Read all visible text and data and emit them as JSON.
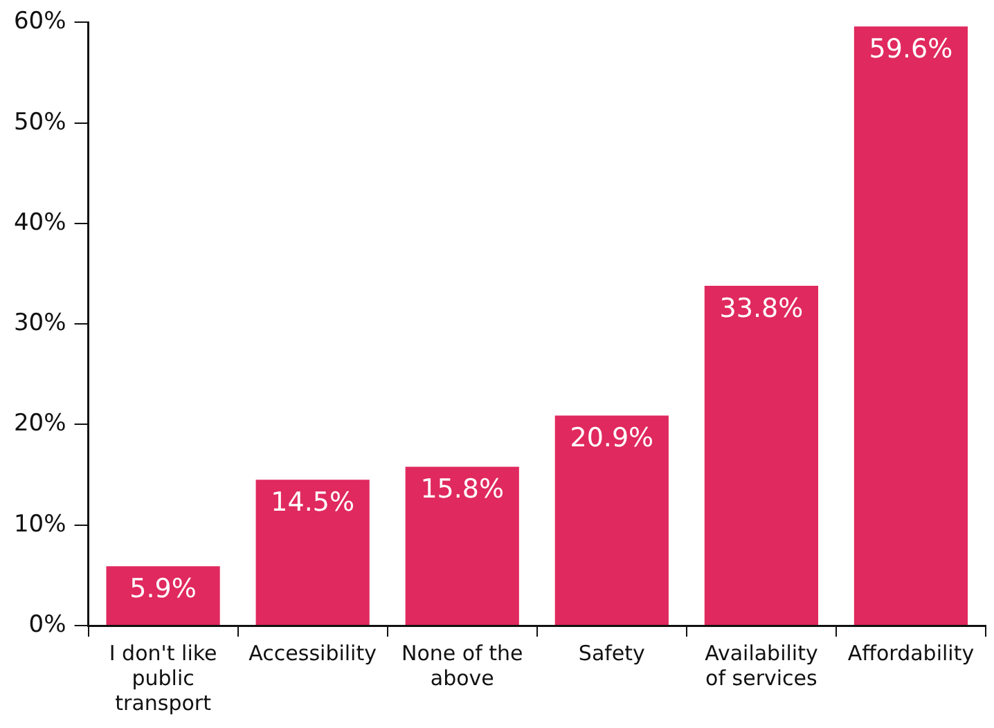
{
  "chart_data": {
    "type": "bar",
    "categories": [
      "I don't like public transport",
      "Accessibility",
      "None of the above",
      "Safety",
      "Availability of services",
      "Affordability"
    ],
    "values": [
      5.9,
      14.5,
      15.8,
      20.9,
      33.8,
      59.6
    ],
    "value_labels": [
      "5.9%",
      "14.5%",
      "15.8%",
      "20.9%",
      "33.8%",
      "59.6%"
    ],
    "color": "#e0295e",
    "ylim": [
      0,
      60
    ],
    "yticks": [
      {
        "value": 0,
        "label": "0%"
      },
      {
        "value": 10,
        "label": "10%"
      },
      {
        "value": 20,
        "label": "20%"
      },
      {
        "value": 30,
        "label": "30%"
      },
      {
        "value": 40,
        "label": "40%"
      },
      {
        "value": 50,
        "label": "50%"
      },
      {
        "value": 60,
        "label": "60%"
      }
    ],
    "grid": false,
    "legend": false
  }
}
